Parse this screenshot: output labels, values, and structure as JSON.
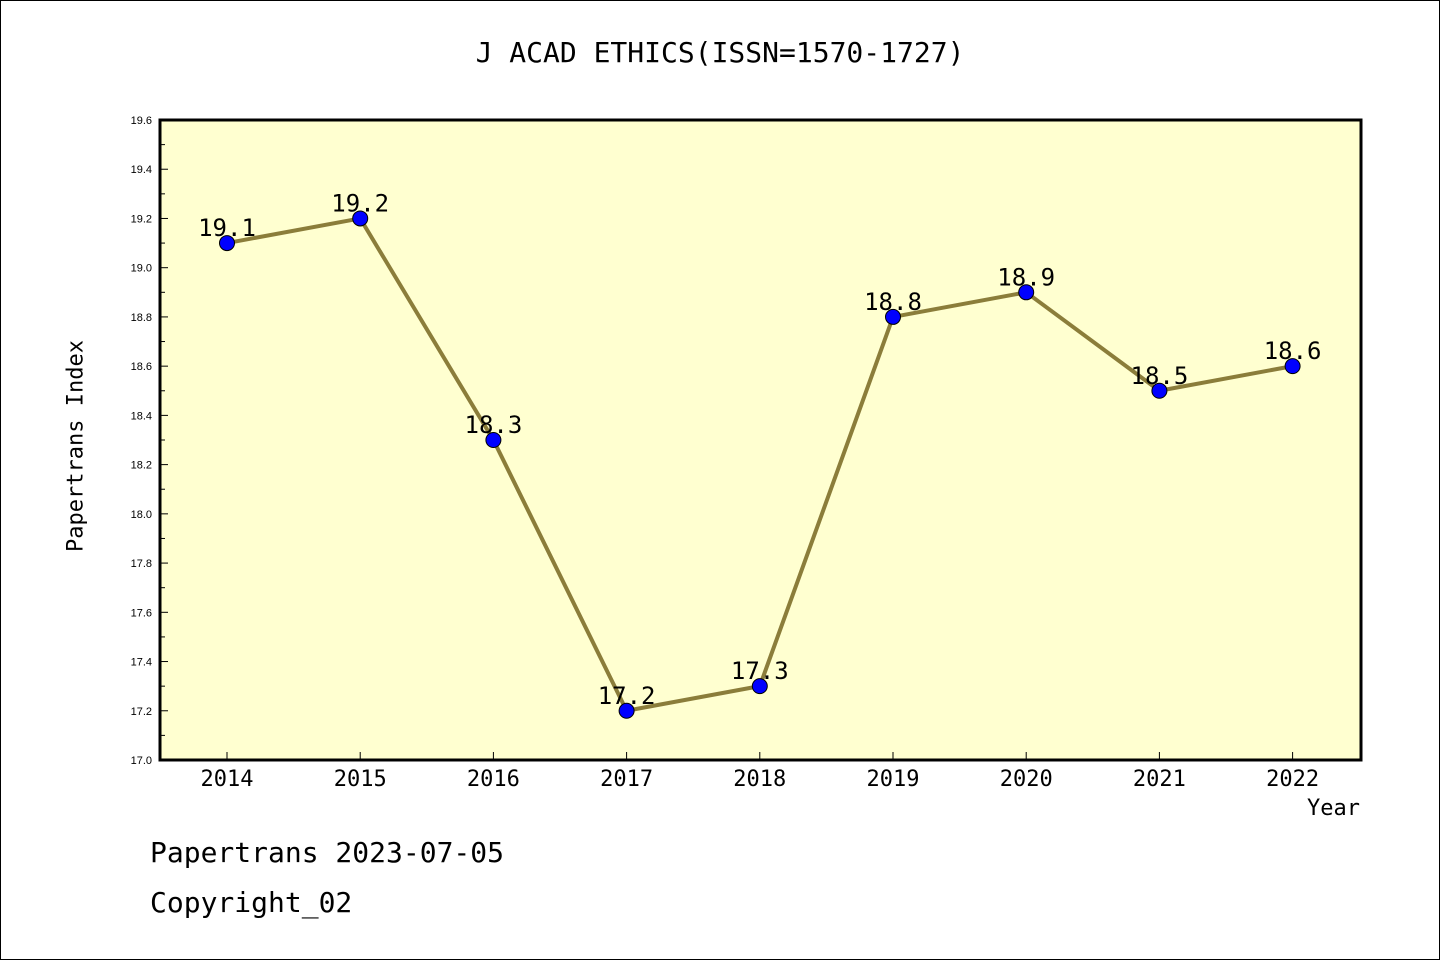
{
  "chart_data": {
    "type": "line",
    "title": "J ACAD ETHICS(ISSN=1570-1727)",
    "xlabel": "Year",
    "ylabel": "Papertrans Index",
    "categories": [
      "2014",
      "2015",
      "2016",
      "2017",
      "2018",
      "2019",
      "2020",
      "2021",
      "2022"
    ],
    "values": [
      19.1,
      19.2,
      18.3,
      17.2,
      17.3,
      18.8,
      18.9,
      18.5,
      18.6
    ],
    "data_labels": [
      "19.1",
      "19.2",
      "18.3",
      "17.2",
      "17.3",
      "18.8",
      "18.9",
      "18.5",
      "18.6"
    ],
    "ylim": [
      17.0,
      19.6
    ],
    "y_ticks": [
      "17.0",
      "17.2",
      "17.4",
      "17.6",
      "17.8",
      "18.0",
      "18.2",
      "18.4",
      "18.6",
      "18.8",
      "19.0",
      "19.2",
      "19.4",
      "19.6"
    ],
    "grid": false,
    "colors": {
      "plot_background": "#ffffd0",
      "line": "#8b7d3a",
      "marker": "#0000ff"
    }
  },
  "footer": {
    "source": "Papertrans 2023-07-05",
    "copyright": "Copyright_02"
  }
}
